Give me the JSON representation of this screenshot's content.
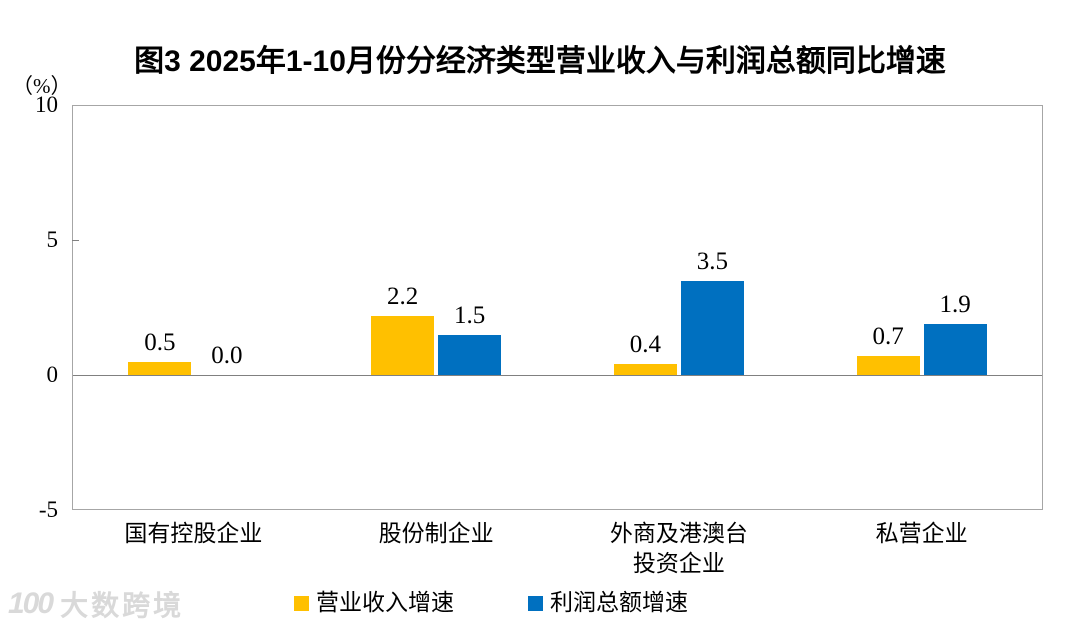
{
  "chart_data": {
    "type": "bar",
    "title": "图3  2025年1-10月份分经济类型营业收入与利润总额同比增速",
    "ylabel": "（%）",
    "ylim": [
      -5,
      10
    ],
    "yticks": [
      10,
      5,
      0,
      -5
    ],
    "categories": [
      "国有控股企业",
      "股份制企业",
      "外商及港澳台\n投资企业",
      "私营企业"
    ],
    "series": [
      {
        "name": "营业收入增速",
        "color": "#FFC000",
        "values": [
          0.5,
          2.2,
          0.4,
          0.7
        ]
      },
      {
        "name": "利润总额增速",
        "color": "#0070C0",
        "values": [
          0.0,
          1.5,
          3.5,
          1.9
        ]
      }
    ],
    "legend_position": "bottom",
    "grid": false,
    "frame_color": "#a6a6a6",
    "zero_line_color": "#808080"
  },
  "watermark": {
    "logo": "100",
    "text": "大数跨境",
    "color": "#d9d9d9"
  }
}
